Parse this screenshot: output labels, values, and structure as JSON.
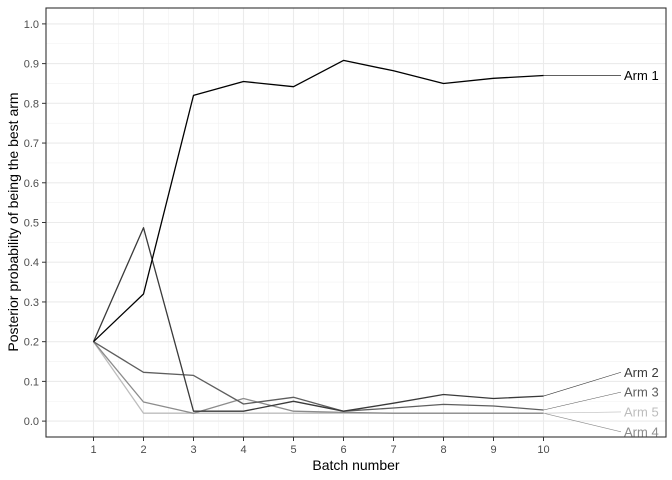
{
  "chart_data": {
    "type": "line",
    "xlabel": "Batch number",
    "ylabel": "Posterior probability of being the best arm",
    "x": [
      1,
      2,
      3,
      4,
      5,
      6,
      7,
      8,
      9,
      10
    ],
    "x_ticks": [
      "1",
      "2",
      "3",
      "4",
      "5",
      "6",
      "7",
      "8",
      "9",
      "10"
    ],
    "y_ticks": [
      "0.0",
      "0.1",
      "0.2",
      "0.3",
      "0.4",
      "0.5",
      "0.6",
      "0.7",
      "0.8",
      "0.9",
      "1.0"
    ],
    "ylim": [
      -0.04,
      1.04
    ],
    "xlim": [
      0.05,
      12.45
    ],
    "grid": true,
    "legend": "none",
    "label_placement": "right of plot, connected by leader lines",
    "series": [
      {
        "name": "Arm 1",
        "color": "#000000",
        "values": [
          0.2,
          0.32,
          0.82,
          0.855,
          0.842,
          0.908,
          0.882,
          0.85,
          0.863,
          0.87
        ],
        "label_y": 0.87
      },
      {
        "name": "Arm 2",
        "color": "#3a3a3a",
        "values": [
          0.2,
          0.487,
          0.025,
          0.025,
          0.05,
          0.025,
          0.045,
          0.067,
          0.057,
          0.063
        ],
        "label_y": 0.123
      },
      {
        "name": "Arm 3",
        "color": "#5e5e5e",
        "values": [
          0.2,
          0.123,
          0.115,
          0.043,
          0.06,
          0.025,
          0.033,
          0.042,
          0.038,
          0.028
        ],
        "label_y": 0.073
      },
      {
        "name": "Arm 4",
        "color": "#8c8c8c",
        "values": [
          0.2,
          0.048,
          0.02,
          0.057,
          0.025,
          0.022,
          0.02,
          0.02,
          0.02,
          0.02
        ],
        "label_y": -0.027
      },
      {
        "name": "Arm 5",
        "color": "#bdbdbd",
        "values": [
          0.2,
          0.02,
          0.02,
          0.02,
          0.02,
          0.02,
          0.02,
          0.02,
          0.02,
          0.02
        ],
        "label_y": 0.023
      }
    ]
  }
}
